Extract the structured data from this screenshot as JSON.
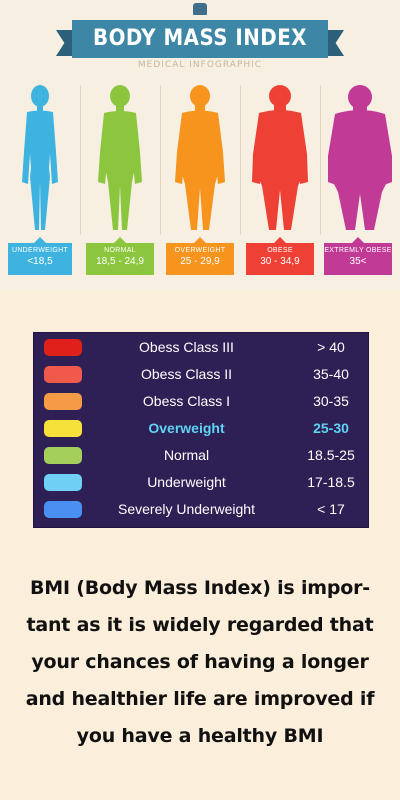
{
  "infographic": {
    "title": "BODY MASS INDEX",
    "subtitle": "MEDICAL INFOGRAPHIC",
    "categories": [
      {
        "label": "UNDERWEIGHT",
        "range": "<18,5",
        "color": "#3fb3e0",
        "icon": "underweight-figure-icon"
      },
      {
        "label": "NORMAL",
        "range": "18,5 - 24,9",
        "color": "#8cc63f",
        "icon": "normal-figure-icon"
      },
      {
        "label": "OVERWEIGHT",
        "range": "25 - 29,9",
        "color": "#f7941d",
        "icon": "overweight-figure-icon"
      },
      {
        "label": "OBESE",
        "range": "30 - 34,9",
        "color": "#ee4035",
        "icon": "obese-figure-icon"
      },
      {
        "label": "EXTREMLY OBESE",
        "range": "35<",
        "color": "#c13a96",
        "icon": "extremely-obese-figure-icon"
      }
    ]
  },
  "table": {
    "rows": [
      {
        "label": "Obess Class III",
        "range": "> 40",
        "color": "#e0201b"
      },
      {
        "label": "Obess Class II",
        "range": "35-40",
        "color": "#f05a4a"
      },
      {
        "label": "Obess Class I",
        "range": "30-35",
        "color": "#f59a45"
      },
      {
        "label": "Overweight",
        "range": "25-30",
        "color": "#f6e03a",
        "highlight": true
      },
      {
        "label": "Normal",
        "range": "18.5-25",
        "color": "#a4cf5a"
      },
      {
        "label": "Underweight",
        "range": "17-18.5",
        "color": "#6fcff5"
      },
      {
        "label": "Severely Underweight",
        "range": "< 17",
        "color": "#4a8ff2"
      }
    ]
  },
  "description": {
    "lines": [
      "BMI (Body Mass Index) is impor-",
      "tant as it is widely regarded that",
      "your chances of having a longer",
      "and healthier life are improved if",
      "you have a healthy BMI"
    ]
  }
}
